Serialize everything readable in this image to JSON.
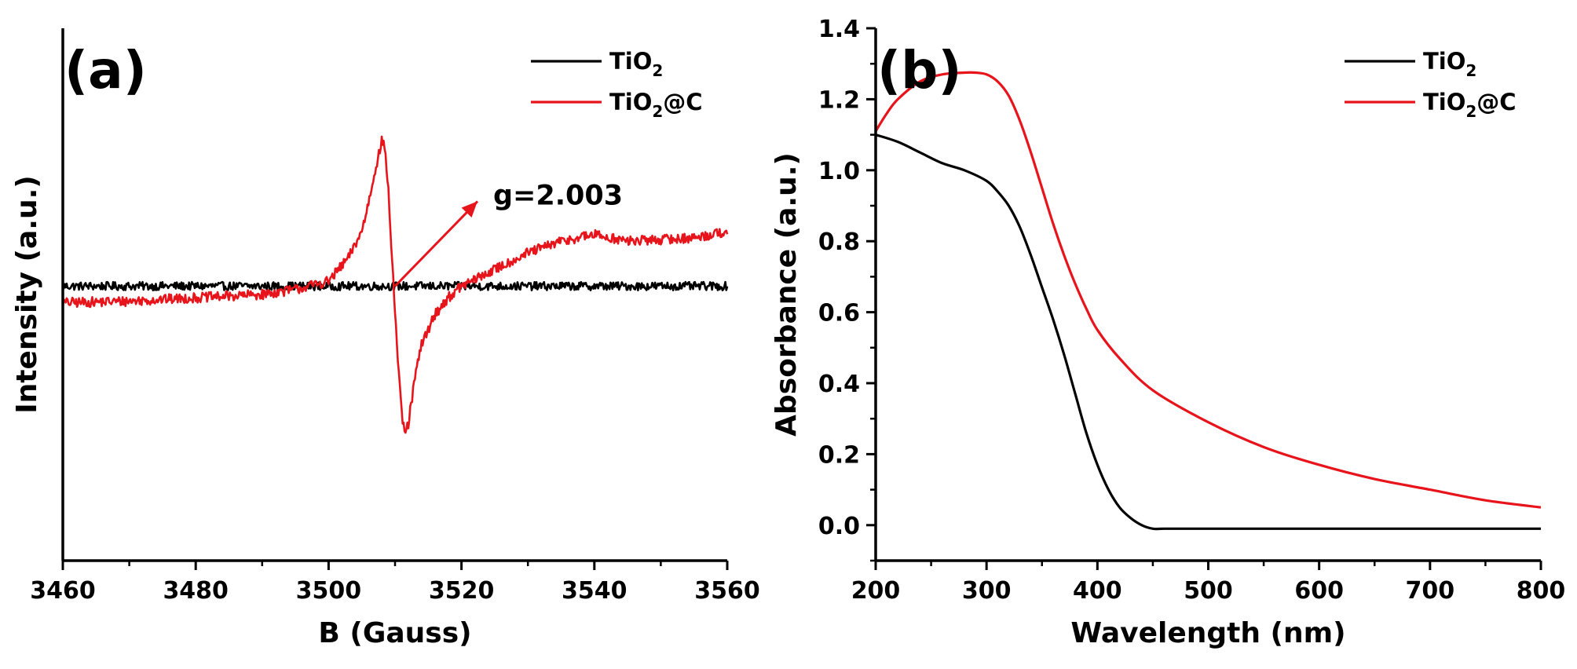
{
  "chart_data": [
    {
      "type": "line",
      "panel_label": "(a)",
      "xlabel": "B (Gauss)",
      "ylabel": "Intensity (a.u.)",
      "xlim": [
        3460,
        3560
      ],
      "ylim": [
        -1.6,
        1.6
      ],
      "x_ticks": [
        3460,
        3480,
        3500,
        3520,
        3540,
        3560
      ],
      "y_ticks_labeled": false,
      "grid": false,
      "legend_position": "top-right",
      "annotation": {
        "text": "g=2.003",
        "at_x": 3510,
        "at_y": 0.05
      },
      "series": [
        {
          "name": "TiO2",
          "legend_main": "TiO",
          "legend_sub": "2",
          "legend_tail": "",
          "color": "#000000",
          "x": [
            3460,
            3480,
            3500,
            3520,
            3540,
            3560
          ],
          "y": [
            0.05,
            0.05,
            0.05,
            0.05,
            0.05,
            0.05
          ],
          "noise": 0.025
        },
        {
          "name": "TiO2@C",
          "legend_main": "TiO",
          "legend_sub": "2",
          "legend_tail": "@C",
          "color": "#e8141b",
          "x": [
            3460,
            3470,
            3480,
            3490,
            3495,
            3500,
            3503,
            3505,
            3506,
            3507,
            3508,
            3508.5,
            3509,
            3509.5,
            3510,
            3510.5,
            3511,
            3511.5,
            3512,
            3513,
            3514,
            3516,
            3518,
            3520,
            3525,
            3530,
            3535,
            3540,
            3545,
            3550,
            3555,
            3560
          ],
          "y": [
            -0.05,
            -0.04,
            -0.02,
            0.0,
            0.03,
            0.08,
            0.22,
            0.38,
            0.55,
            0.75,
            0.92,
            0.88,
            0.62,
            0.25,
            -0.1,
            -0.45,
            -0.72,
            -0.84,
            -0.78,
            -0.5,
            -0.3,
            -0.12,
            -0.02,
            0.05,
            0.15,
            0.25,
            0.32,
            0.36,
            0.32,
            0.33,
            0.34,
            0.38
          ],
          "noise": 0.03
        }
      ]
    },
    {
      "type": "line",
      "panel_label": "(b)",
      "xlabel": "Wavelength (nm)",
      "ylabel": "Absorbance (a.u.)",
      "xlim": [
        200,
        800
      ],
      "ylim": [
        -0.1,
        1.4
      ],
      "x_ticks": [
        200,
        300,
        400,
        500,
        600,
        700,
        800
      ],
      "y_ticks": [
        0.0,
        0.2,
        0.4,
        0.6,
        0.8,
        1.0,
        1.2,
        1.4
      ],
      "y_tick_labels": [
        "0.0",
        "0.2",
        "0.4",
        "0.6",
        "0.8",
        "1.0",
        "1.2",
        "1.4"
      ],
      "grid": false,
      "legend_position": "top-right",
      "series": [
        {
          "name": "TiO2",
          "legend_main": "TiO",
          "legend_sub": "2",
          "legend_tail": "",
          "color": "#000000",
          "x": [
            200,
            220,
            240,
            260,
            280,
            300,
            310,
            320,
            330,
            340,
            350,
            360,
            370,
            380,
            390,
            400,
            410,
            420,
            430,
            440,
            450,
            460,
            480,
            500,
            600,
            700,
            800
          ],
          "y": [
            1.1,
            1.08,
            1.05,
            1.02,
            1.0,
            0.97,
            0.94,
            0.9,
            0.84,
            0.76,
            0.67,
            0.58,
            0.48,
            0.37,
            0.26,
            0.17,
            0.1,
            0.05,
            0.02,
            0.0,
            -0.01,
            -0.01,
            -0.01,
            -0.01,
            -0.01,
            -0.01,
            -0.01
          ],
          "noise": 0
        },
        {
          "name": "TiO2@C",
          "legend_main": "TiO",
          "legend_sub": "2",
          "legend_tail": "@C",
          "color": "#e8141b",
          "x": [
            200,
            210,
            220,
            240,
            260,
            280,
            290,
            300,
            310,
            320,
            330,
            340,
            350,
            360,
            370,
            380,
            390,
            400,
            420,
            450,
            500,
            550,
            600,
            650,
            700,
            750,
            800
          ],
          "y": [
            1.11,
            1.16,
            1.2,
            1.25,
            1.27,
            1.275,
            1.275,
            1.27,
            1.25,
            1.21,
            1.14,
            1.05,
            0.95,
            0.85,
            0.76,
            0.68,
            0.61,
            0.55,
            0.47,
            0.38,
            0.29,
            0.22,
            0.17,
            0.13,
            0.1,
            0.07,
            0.05
          ],
          "noise": 0
        }
      ]
    }
  ]
}
